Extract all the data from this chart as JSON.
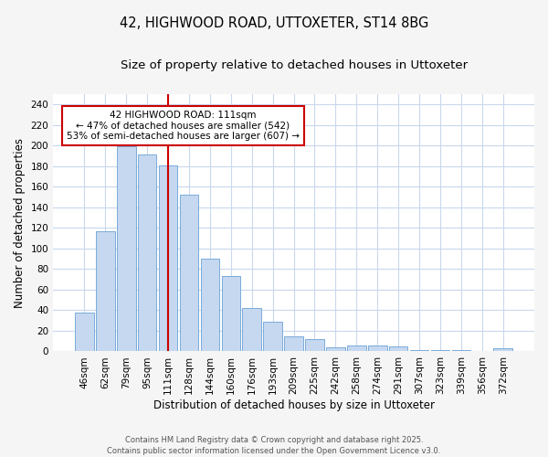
{
  "title": "42, HIGHWOOD ROAD, UTTOXETER, ST14 8BG",
  "subtitle": "Size of property relative to detached houses in Uttoxeter",
  "xlabel": "Distribution of detached houses by size in Uttoxeter",
  "ylabel": "Number of detached properties",
  "bins": [
    "46sqm",
    "62sqm",
    "79sqm",
    "95sqm",
    "111sqm",
    "128sqm",
    "144sqm",
    "160sqm",
    "176sqm",
    "193sqm",
    "209sqm",
    "225sqm",
    "242sqm",
    "258sqm",
    "274sqm",
    "291sqm",
    "307sqm",
    "323sqm",
    "339sqm",
    "356sqm",
    "372sqm"
  ],
  "values": [
    38,
    117,
    199,
    191,
    181,
    152,
    90,
    73,
    42,
    29,
    15,
    12,
    4,
    6,
    6,
    5,
    1,
    1,
    1,
    0,
    3
  ],
  "bar_color": "#c5d8f0",
  "bar_edge_color": "#7aabda",
  "vline_x_index": 4,
  "vline_color": "#cc0000",
  "annotation_text": "42 HIGHWOOD ROAD: 111sqm\n← 47% of detached houses are smaller (542)\n53% of semi-detached houses are larger (607) →",
  "annotation_box_facecolor": "#ffffff",
  "annotation_box_edgecolor": "#cc0000",
  "ylim": [
    0,
    250
  ],
  "yticks": [
    0,
    20,
    40,
    60,
    80,
    100,
    120,
    140,
    160,
    180,
    200,
    220,
    240
  ],
  "fig_bg_color": "#f5f5f5",
  "plot_bg_color": "#ffffff",
  "grid_color": "#c8d8ed",
  "footer_text": "Contains HM Land Registry data © Crown copyright and database right 2025.\nContains public sector information licensed under the Open Government Licence v3.0.",
  "title_fontsize": 10.5,
  "subtitle_fontsize": 9.5,
  "axis_label_fontsize": 8.5,
  "tick_fontsize": 7.5,
  "annotation_fontsize": 7.5,
  "footer_fontsize": 6.0
}
